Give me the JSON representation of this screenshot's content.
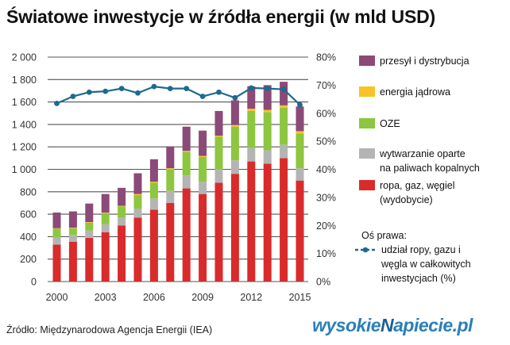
{
  "title": "Światowe inwestycje w źródła energii (w mld USD)",
  "source": "Źródło: Międzynarodowa Agencja Energii (IEA)",
  "logo": "wysokieNapiecie.pl",
  "colors": {
    "transmission": "#8b4a78",
    "nuclear": "#f7c325",
    "renewables": "#8dc63f",
    "fossil_generation": "#b4b4b4",
    "upstream": "#d92b2b",
    "share_line": "#1d6a8f",
    "grid": "#555555"
  },
  "chart_data": {
    "type": "bar",
    "stacked": true,
    "x": [
      2000,
      2001,
      2002,
      2003,
      2004,
      2005,
      2006,
      2007,
      2008,
      2009,
      2010,
      2011,
      2012,
      2013,
      2014,
      2015
    ],
    "x_tick_labels": [
      "2000",
      "2003",
      "2006",
      "2009",
      "2012",
      "2015"
    ],
    "y_left": {
      "range": [
        0,
        2000
      ],
      "ticks": [
        0,
        200,
        400,
        600,
        800,
        1000,
        1200,
        1400,
        1600,
        1800,
        2000
      ],
      "tick_labels": [
        "0",
        "200",
        "400",
        "600",
        "800",
        "1 000",
        "1 200",
        "1 400",
        "1 600",
        "1 800",
        "2 000"
      ]
    },
    "y_right": {
      "range": [
        0,
        80
      ],
      "ticks": [
        0,
        10,
        20,
        30,
        40,
        50,
        60,
        70,
        80
      ],
      "tick_labels": [
        "0%",
        "10%",
        "20%",
        "30%",
        "40%",
        "50%",
        "60%",
        "70%",
        "80%"
      ]
    },
    "grid": true,
    "legend_position": "right",
    "series": [
      {
        "name": "ropa, gaz, węgiel (wydobycie)",
        "key": "upstream",
        "values": [
          330,
          355,
          390,
          440,
          500,
          570,
          640,
          700,
          830,
          780,
          880,
          960,
          1070,
          1050,
          1100,
          900
        ]
      },
      {
        "name": "wytwarzanie oparte na paliwach kopalnych",
        "key": "fossil_generation",
        "values": [
          60,
          60,
          65,
          70,
          70,
          80,
          100,
          110,
          115,
          110,
          120,
          120,
          120,
          120,
          120,
          110
        ]
      },
      {
        "name": "OZE",
        "key": "renewables",
        "values": [
          80,
          60,
          70,
          100,
          100,
          120,
          140,
          190,
          210,
          220,
          290,
          300,
          330,
          340,
          330,
          310
        ]
      },
      {
        "name": "energia jądrowa",
        "key": "nuclear",
        "values": [
          5,
          5,
          5,
          5,
          5,
          10,
          10,
          10,
          10,
          10,
          10,
          15,
          20,
          20,
          20,
          20
        ]
      },
      {
        "name": "przesył i dystrybucja",
        "key": "transmission",
        "values": [
          140,
          145,
          165,
          165,
          160,
          185,
          200,
          195,
          215,
          225,
          220,
          220,
          200,
          220,
          210,
          220
        ]
      }
    ],
    "line_series": {
      "name": "udział ropy, gazu i węgla w całkowitych inwestycjach (%)",
      "axis": "right",
      "values": [
        63.5,
        66,
        67.5,
        67.8,
        68.8,
        67.2,
        69.5,
        68.8,
        68.8,
        66,
        67.5,
        65.5,
        69,
        68.8,
        68.5,
        63
      ]
    }
  },
  "legend": {
    "items": [
      {
        "key": "transmission",
        "lines": [
          "przesył i dystrybucja"
        ]
      },
      {
        "key": "nuclear",
        "lines": [
          "energia jądrowa"
        ]
      },
      {
        "key": "renewables",
        "lines": [
          "OZE"
        ]
      },
      {
        "key": "fossil_generation",
        "lines": [
          "wytwarzanie oparte",
          "na paliwach kopalnych"
        ]
      },
      {
        "key": "upstream",
        "lines": [
          "ropa, gaz, węgiel",
          "(wydobycie)"
        ]
      }
    ],
    "right_axis_heading": "Oś prawa:",
    "line_item_lines": [
      "udział ropy, gazu i",
      "węgla w całkowitych",
      "inwestycjach (%)"
    ]
  }
}
